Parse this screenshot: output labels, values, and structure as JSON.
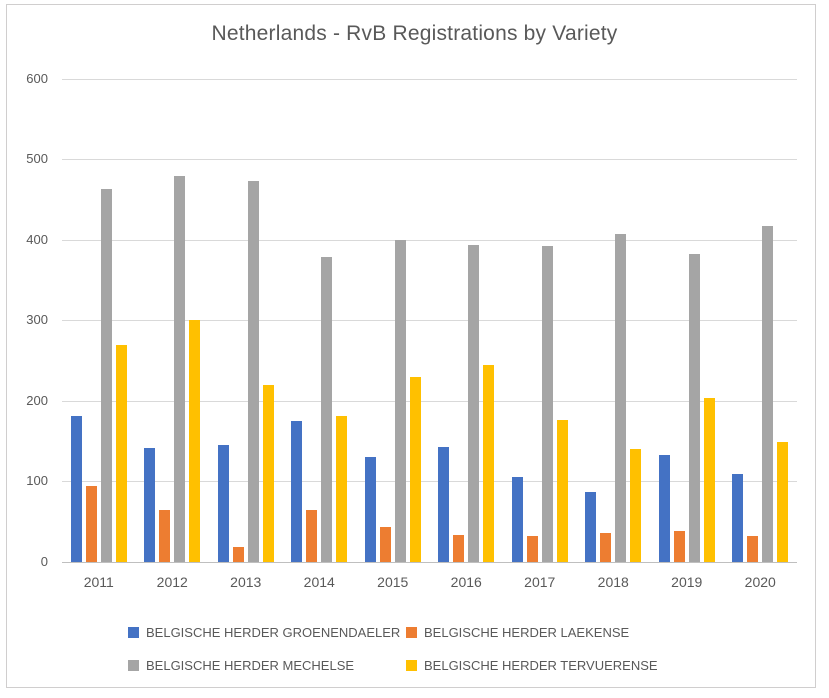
{
  "title": "Netherlands - RvB Registrations by Variety",
  "colors": {
    "series_blue": "#4472C4",
    "series_orange": "#ED7D31",
    "series_gray": "#A5A5A5",
    "series_yellow": "#FFC000",
    "gridline": "#D9D9D9",
    "axis_line": "#BFBFBF",
    "text": "#595959",
    "frame_border": "#D0CECE"
  },
  "chart_data": {
    "type": "bar",
    "title": "Netherlands - RvB Registrations by Variety",
    "categories": [
      "2011",
      "2012",
      "2013",
      "2014",
      "2015",
      "2016",
      "2017",
      "2018",
      "2019",
      "2020"
    ],
    "series": [
      {
        "name": "BELGISCHE HERDER GROENENDAELER",
        "color": "#4472C4",
        "values": [
          181,
          141,
          145,
          175,
          130,
          143,
          106,
          87,
          133,
          109
        ]
      },
      {
        "name": "BELGISCHE HERDER LAEKENSE",
        "color": "#ED7D31",
        "values": [
          95,
          65,
          19,
          64,
          43,
          33,
          32,
          36,
          39,
          32
        ]
      },
      {
        "name": "BELGISCHE HERDER MECHELSE",
        "color": "#A5A5A5",
        "values": [
          463,
          479,
          473,
          379,
          400,
          394,
          392,
          407,
          382,
          418
        ]
      },
      {
        "name": "BELGISCHE HERDER TERVUERENSE",
        "color": "#FFC000",
        "values": [
          270,
          301,
          220,
          181,
          230,
          245,
          176,
          140,
          204,
          149
        ]
      }
    ],
    "xlabel": "",
    "ylabel": "",
    "ylim": [
      0,
      600
    ],
    "yticks": [
      0,
      100,
      200,
      300,
      400,
      500,
      600
    ],
    "grid": true,
    "legend_position": "bottom",
    "legend_rows": [
      [
        0,
        1
      ],
      [
        2,
        3
      ]
    ]
  }
}
